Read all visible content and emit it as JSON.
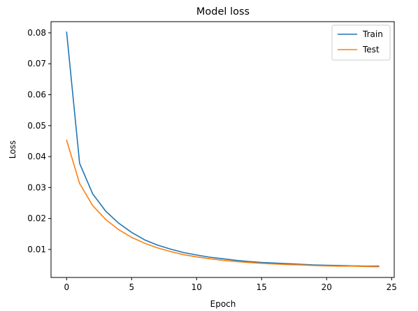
{
  "chart_data": {
    "type": "line",
    "title": "Model loss",
    "xlabel": "Epoch",
    "ylabel": "Loss",
    "xlim": [
      -1.2,
      25.2
    ],
    "ylim": [
      0.00095,
      0.0836
    ],
    "xticks": [
      0,
      5,
      10,
      15,
      20,
      25
    ],
    "yticks": [
      0.01,
      0.02,
      0.03,
      0.04,
      0.05,
      0.06,
      0.07,
      0.08
    ],
    "xtick_labels": [
      "0",
      "5",
      "10",
      "15",
      "20",
      "25"
    ],
    "ytick_labels": [
      "0.01",
      "0.02",
      "0.03",
      "0.04",
      "0.05",
      "0.06",
      "0.07",
      "0.08"
    ],
    "grid": false,
    "legend_position": "top-right",
    "x": [
      0,
      1,
      2,
      3,
      4,
      5,
      6,
      7,
      8,
      9,
      10,
      11,
      12,
      13,
      14,
      15,
      16,
      17,
      18,
      19,
      20,
      21,
      22,
      23,
      24
    ],
    "series": [
      {
        "name": "Train",
        "color": "#1f77b4",
        "values": [
          0.0802,
          0.0378,
          0.028,
          0.0224,
          0.0185,
          0.0155,
          0.0131,
          0.0114,
          0.0101,
          0.009,
          0.0082,
          0.0075,
          0.007,
          0.0065,
          0.0061,
          0.0058,
          0.0056,
          0.0054,
          0.0052,
          0.005,
          0.0049,
          0.0048,
          0.0047,
          0.0046,
          0.0046
        ]
      },
      {
        "name": "Test",
        "color": "#ff7f0e",
        "values": [
          0.0453,
          0.0313,
          0.0242,
          0.0197,
          0.0164,
          0.0139,
          0.012,
          0.0105,
          0.0093,
          0.0083,
          0.0076,
          0.007,
          0.0065,
          0.0061,
          0.0058,
          0.0055,
          0.0053,
          0.0051,
          0.005,
          0.0048,
          0.0047,
          0.0046,
          0.0046,
          0.0045,
          0.0044
        ]
      }
    ]
  }
}
